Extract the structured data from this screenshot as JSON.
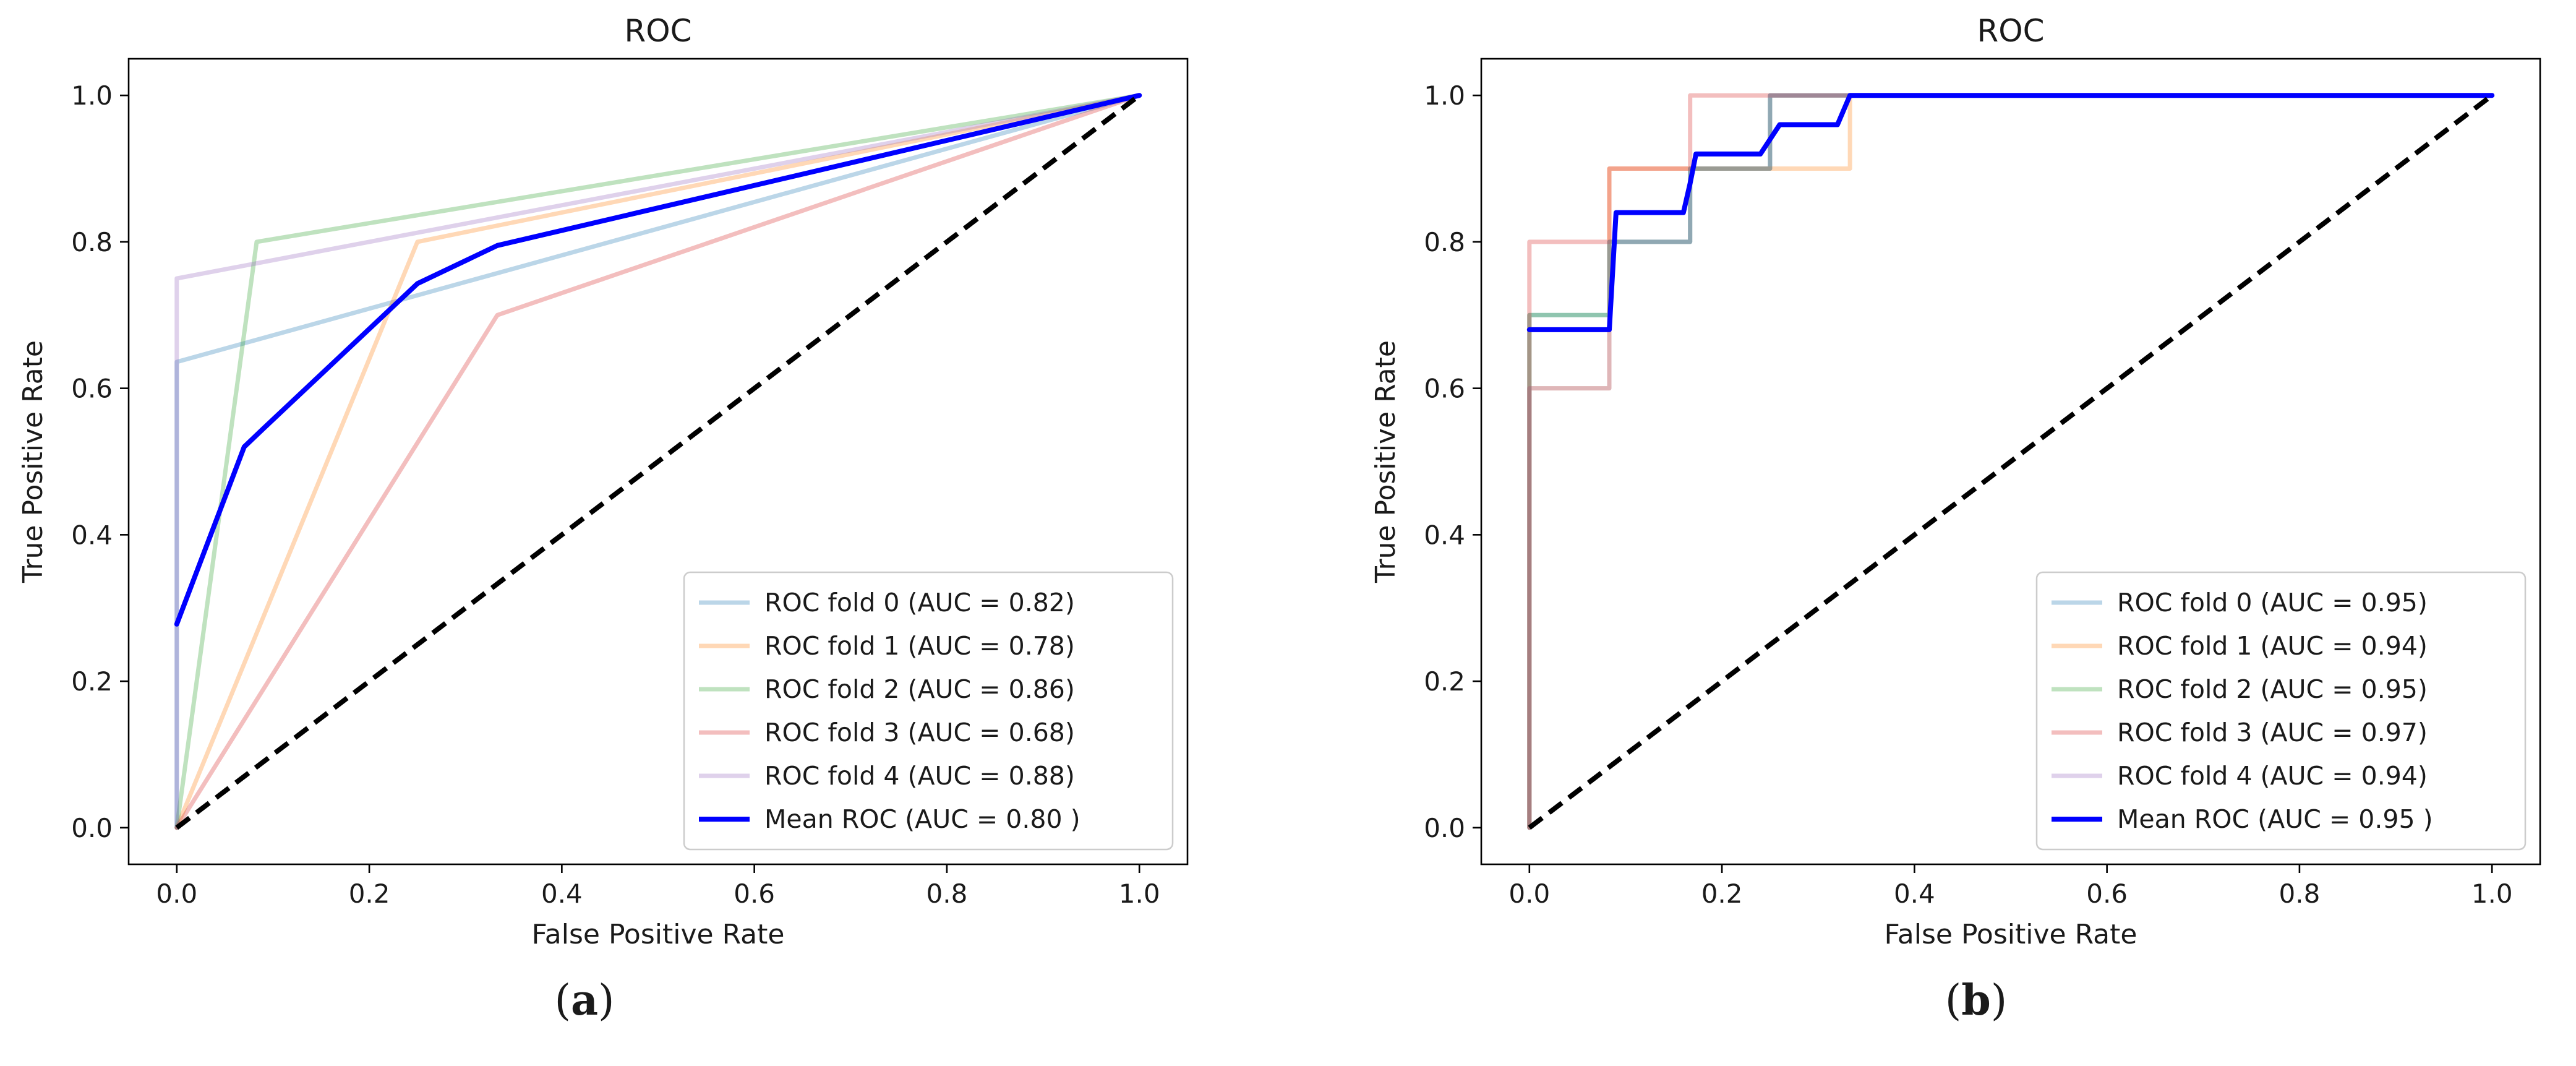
{
  "chart_data": [
    {
      "type": "line",
      "title": "ROC",
      "xlabel": "False Positive Rate",
      "ylabel": "True Positive Rate",
      "xlim": [
        -0.05,
        1.05
      ],
      "ylim": [
        -0.05,
        1.05
      ],
      "xticks": [
        "0.0",
        "0.2",
        "0.4",
        "0.6",
        "0.8",
        "1.0"
      ],
      "yticks": [
        "0.0",
        "0.2",
        "0.4",
        "0.6",
        "0.8",
        "1.0"
      ],
      "legend_position": "lower-right",
      "caption": {
        "open": "(",
        "letter": "a",
        "close": ")"
      },
      "chance_line": {
        "x": [
          0,
          1
        ],
        "y": [
          0,
          1
        ],
        "color": "#000000",
        "style": "dashed"
      },
      "series": [
        {
          "name": "ROC fold 0 (AUC = 0.82)",
          "color": "#1f77b4",
          "opacity": 0.3,
          "x": [
            0,
            0,
            1
          ],
          "y": [
            0,
            0.636,
            1
          ]
        },
        {
          "name": "ROC fold 1 (AUC = 0.78)",
          "color": "#ff7f0e",
          "opacity": 0.3,
          "x": [
            0,
            0.25,
            1
          ],
          "y": [
            0,
            0.8,
            1
          ]
        },
        {
          "name": "ROC fold 2 (AUC = 0.86)",
          "color": "#2ca02c",
          "opacity": 0.3,
          "x": [
            0,
            0.083,
            1
          ],
          "y": [
            0,
            0.8,
            1
          ]
        },
        {
          "name": "ROC fold 3 (AUC = 0.68)",
          "color": "#d62728",
          "opacity": 0.3,
          "x": [
            0,
            0.333,
            1
          ],
          "y": [
            0,
            0.7,
            1
          ]
        },
        {
          "name": "ROC fold 4 (AUC = 0.88)",
          "color": "#9467bd",
          "opacity": 0.3,
          "x": [
            0,
            0,
            1
          ],
          "y": [
            0,
            0.75,
            1
          ]
        },
        {
          "name": "Mean ROC (AUC = 0.80 )",
          "color": "#0000ff",
          "opacity": 1,
          "x": [
            0,
            0.07,
            0.09,
            0.25,
            0.333,
            1
          ],
          "y": [
            0.278,
            0.52,
            0.545,
            0.743,
            0.795,
            1
          ]
        }
      ]
    },
    {
      "type": "line",
      "title": "ROC",
      "xlabel": "False Positive Rate",
      "ylabel": "True Positive Rate",
      "xlim": [
        -0.05,
        1.05
      ],
      "ylim": [
        -0.05,
        1.05
      ],
      "xticks": [
        "0.0",
        "0.2",
        "0.4",
        "0.6",
        "0.8",
        "1.0"
      ],
      "yticks": [
        "0.0",
        "0.2",
        "0.4",
        "0.6",
        "0.8",
        "1.0"
      ],
      "legend_position": "lower-right",
      "caption": {
        "open": "(",
        "letter": "b",
        "close": ")"
      },
      "chance_line": {
        "x": [
          0,
          1
        ],
        "y": [
          0,
          1
        ],
        "color": "#000000",
        "style": "dashed"
      },
      "series": [
        {
          "name": "ROC fold 0 (AUC = 0.95)",
          "color": "#1f77b4",
          "opacity": 0.3,
          "x": [
            0,
            0,
            0.083,
            0.083,
            0.167,
            0.167,
            0.25,
            0.25,
            1
          ],
          "y": [
            0,
            0.7,
            0.7,
            0.8,
            0.8,
            0.9,
            0.9,
            1,
            1
          ]
        },
        {
          "name": "ROC fold 1 (AUC = 0.94)",
          "color": "#ff7f0e",
          "opacity": 0.3,
          "x": [
            0,
            0,
            0.083,
            0.083,
            0.333,
            0.333,
            1
          ],
          "y": [
            0,
            0.6,
            0.6,
            0.9,
            0.9,
            1,
            1
          ]
        },
        {
          "name": "ROC fold 2 (AUC = 0.95)",
          "color": "#2ca02c",
          "opacity": 0.3,
          "x": [
            0,
            0,
            0.083,
            0.083,
            0.167,
            0.167,
            0.25,
            0.25,
            1
          ],
          "y": [
            0,
            0.7,
            0.7,
            0.8,
            0.8,
            0.9,
            0.9,
            1,
            1
          ]
        },
        {
          "name": "ROC fold 3 (AUC = 0.97)",
          "color": "#d62728",
          "opacity": 0.3,
          "x": [
            0,
            0,
            0.083,
            0.083,
            0.167,
            0.167,
            1
          ],
          "y": [
            0,
            0.8,
            0.8,
            0.9,
            0.9,
            1,
            1
          ]
        },
        {
          "name": "ROC fold 4 (AUC = 0.94)",
          "color": "#9467bd",
          "opacity": 0.3,
          "x": [
            0,
            0,
            0.083,
            0.083,
            0.167,
            0.167,
            0.25,
            0.25,
            1
          ],
          "y": [
            0,
            0.6,
            0.6,
            0.8,
            0.8,
            0.9,
            0.9,
            1,
            1
          ]
        },
        {
          "name": "Mean ROC (AUC = 0.95 )",
          "color": "#0000ff",
          "opacity": 1,
          "x": [
            0,
            0.083,
            0.09,
            0.16,
            0.167,
            0.173,
            0.24,
            0.25,
            0.26,
            0.32,
            0.333,
            1
          ],
          "y": [
            0.68,
            0.68,
            0.84,
            0.84,
            0.88,
            0.92,
            0.92,
            0.94,
            0.96,
            0.96,
            1,
            1
          ]
        }
      ]
    }
  ]
}
